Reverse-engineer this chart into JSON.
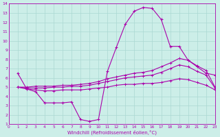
{
  "title": "",
  "xlabel": "Windchill (Refroidissement éolien,°C)",
  "xlim": [
    0,
    23
  ],
  "ylim": [
    1,
    14
  ],
  "xticks": [
    0,
    1,
    2,
    3,
    4,
    5,
    6,
    7,
    8,
    9,
    10,
    11,
    12,
    13,
    14,
    15,
    16,
    17,
    18,
    19,
    20,
    21,
    22,
    23
  ],
  "yticks": [
    1,
    2,
    3,
    4,
    5,
    6,
    7,
    8,
    9,
    10,
    11,
    12,
    13,
    14
  ],
  "bg_color": "#cceee8",
  "grid_color": "#aad8d2",
  "line_color": "#aa00aa",
  "line1_x": [
    1,
    2,
    3,
    4,
    5,
    6,
    7,
    8,
    9,
    10,
    11,
    12,
    13,
    14,
    15,
    16,
    17,
    18,
    19,
    20,
    21,
    22,
    23
  ],
  "line1_y": [
    6.5,
    4.8,
    4.5,
    3.3,
    3.3,
    3.3,
    3.4,
    1.5,
    1.3,
    1.5,
    6.7,
    9.3,
    11.8,
    13.2,
    13.6,
    13.5,
    12.3,
    9.4,
    9.4,
    7.9,
    7.2,
    6.5,
    6.3
  ],
  "line2_x": [
    1,
    2,
    3,
    4,
    5,
    6,
    7,
    8,
    9,
    10,
    11,
    12,
    13,
    14,
    15,
    16,
    17,
    18,
    19,
    20,
    21,
    22,
    23
  ],
  "line2_y": [
    5.0,
    5.0,
    5.1,
    5.1,
    5.1,
    5.2,
    5.2,
    5.3,
    5.4,
    5.6,
    5.9,
    6.1,
    6.3,
    6.5,
    6.6,
    6.8,
    7.2,
    7.6,
    8.1,
    7.9,
    7.3,
    6.8,
    5.0
  ],
  "line3_x": [
    1,
    2,
    3,
    4,
    5,
    6,
    7,
    8,
    9,
    10,
    11,
    12,
    13,
    14,
    15,
    16,
    17,
    18,
    19,
    20,
    21,
    22,
    23
  ],
  "line3_y": [
    5.0,
    4.9,
    4.9,
    4.9,
    5.0,
    5.0,
    5.1,
    5.1,
    5.2,
    5.4,
    5.6,
    5.8,
    6.0,
    6.1,
    6.2,
    6.3,
    6.6,
    7.0,
    7.4,
    7.2,
    6.7,
    6.3,
    4.9
  ],
  "line4_x": [
    1,
    2,
    3,
    4,
    5,
    6,
    7,
    8,
    9,
    10,
    11,
    12,
    13,
    14,
    15,
    16,
    17,
    18,
    19,
    20,
    21,
    22,
    23
  ],
  "line4_y": [
    5.0,
    4.8,
    4.7,
    4.6,
    4.6,
    4.7,
    4.7,
    4.7,
    4.8,
    4.9,
    5.0,
    5.2,
    5.3,
    5.3,
    5.4,
    5.4,
    5.5,
    5.7,
    5.9,
    5.8,
    5.5,
    5.2,
    4.7
  ]
}
